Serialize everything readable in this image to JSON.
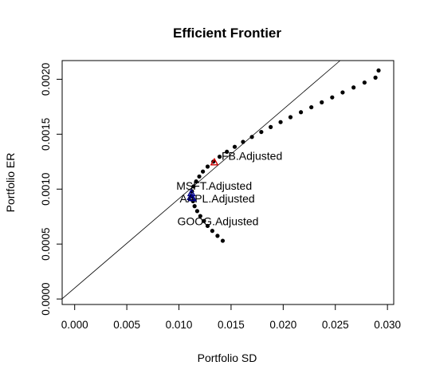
{
  "chart_data": {
    "type": "scatter",
    "title": "Efficient Frontier",
    "xlabel": "Portfolio SD",
    "ylabel": "Portfolio ER",
    "xlim": [
      -0.0012,
      0.0306
    ],
    "ylim": [
      -5e-05,
      0.00217
    ],
    "x_ticks": [
      {
        "value": 0.0,
        "label": "0.000"
      },
      {
        "value": 0.005,
        "label": "0.005"
      },
      {
        "value": 0.01,
        "label": "0.010"
      },
      {
        "value": 0.015,
        "label": "0.015"
      },
      {
        "value": 0.02,
        "label": "0.020"
      },
      {
        "value": 0.025,
        "label": "0.025"
      },
      {
        "value": 0.03,
        "label": "0.030"
      }
    ],
    "y_ticks": [
      {
        "value": 0.0,
        "label": "0.0000"
      },
      {
        "value": 0.0005,
        "label": "0.0005"
      },
      {
        "value": 0.001,
        "label": "0.0010"
      },
      {
        "value": 0.0015,
        "label": "0.0015"
      },
      {
        "value": 0.002,
        "label": "0.0020"
      }
    ],
    "grid": false,
    "frontier_points": [
      {
        "x": 0.0142,
        "y": 0.00053
      },
      {
        "x": 0.0137,
        "y": 0.000575
      },
      {
        "x": 0.0132,
        "y": 0.00062
      },
      {
        "x": 0.01275,
        "y": 0.000665
      },
      {
        "x": 0.0124,
        "y": 0.00071
      },
      {
        "x": 0.01205,
        "y": 0.000755
      },
      {
        "x": 0.01175,
        "y": 0.0008
      },
      {
        "x": 0.0115,
        "y": 0.000845
      },
      {
        "x": 0.01135,
        "y": 0.00089
      },
      {
        "x": 0.01125,
        "y": 0.000935
      },
      {
        "x": 0.01125,
        "y": 0.00098
      },
      {
        "x": 0.0114,
        "y": 0.001025
      },
      {
        "x": 0.01165,
        "y": 0.00107
      },
      {
        "x": 0.01195,
        "y": 0.001115
      },
      {
        "x": 0.0123,
        "y": 0.00116
      },
      {
        "x": 0.01275,
        "y": 0.001205
      },
      {
        "x": 0.0133,
        "y": 0.00125
      },
      {
        "x": 0.0139,
        "y": 0.001295
      },
      {
        "x": 0.0146,
        "y": 0.00134
      },
      {
        "x": 0.01535,
        "y": 0.001385
      },
      {
        "x": 0.01615,
        "y": 0.00143
      },
      {
        "x": 0.017,
        "y": 0.001475
      },
      {
        "x": 0.0179,
        "y": 0.00152
      },
      {
        "x": 0.0188,
        "y": 0.001565
      },
      {
        "x": 0.01975,
        "y": 0.00161
      },
      {
        "x": 0.0207,
        "y": 0.001655
      },
      {
        "x": 0.0217,
        "y": 0.0017
      },
      {
        "x": 0.0227,
        "y": 0.001745
      },
      {
        "x": 0.0237,
        "y": 0.00179
      },
      {
        "x": 0.0247,
        "y": 0.001835
      },
      {
        "x": 0.0257,
        "y": 0.00188
      },
      {
        "x": 0.02675,
        "y": 0.001925
      },
      {
        "x": 0.0278,
        "y": 0.00197
      },
      {
        "x": 0.02885,
        "y": 0.002015
      },
      {
        "x": 0.02915,
        "y": 0.00208
      }
    ],
    "tangency_line": {
      "intercept": 0.0001,
      "slope": 0.0813
    },
    "assets": [
      {
        "name": "FB.Adjusted",
        "x": 0.0134,
        "y": 0.001245,
        "color": "#cc0000"
      },
      {
        "name": "MSFT.Adjusted",
        "x": 0.0112,
        "y": 0.000965,
        "color": "#00008b"
      },
      {
        "name": "AAPL.Adjusted",
        "x": 0.01115,
        "y": 0.00093,
        "color": "#00008b"
      },
      {
        "name": "GOOG.Adjusted",
        "x": 0.0113,
        "y": 0.00092,
        "color": "#00008b"
      }
    ],
    "colors": {
      "frontier": "#000000",
      "line": "#000000"
    }
  }
}
